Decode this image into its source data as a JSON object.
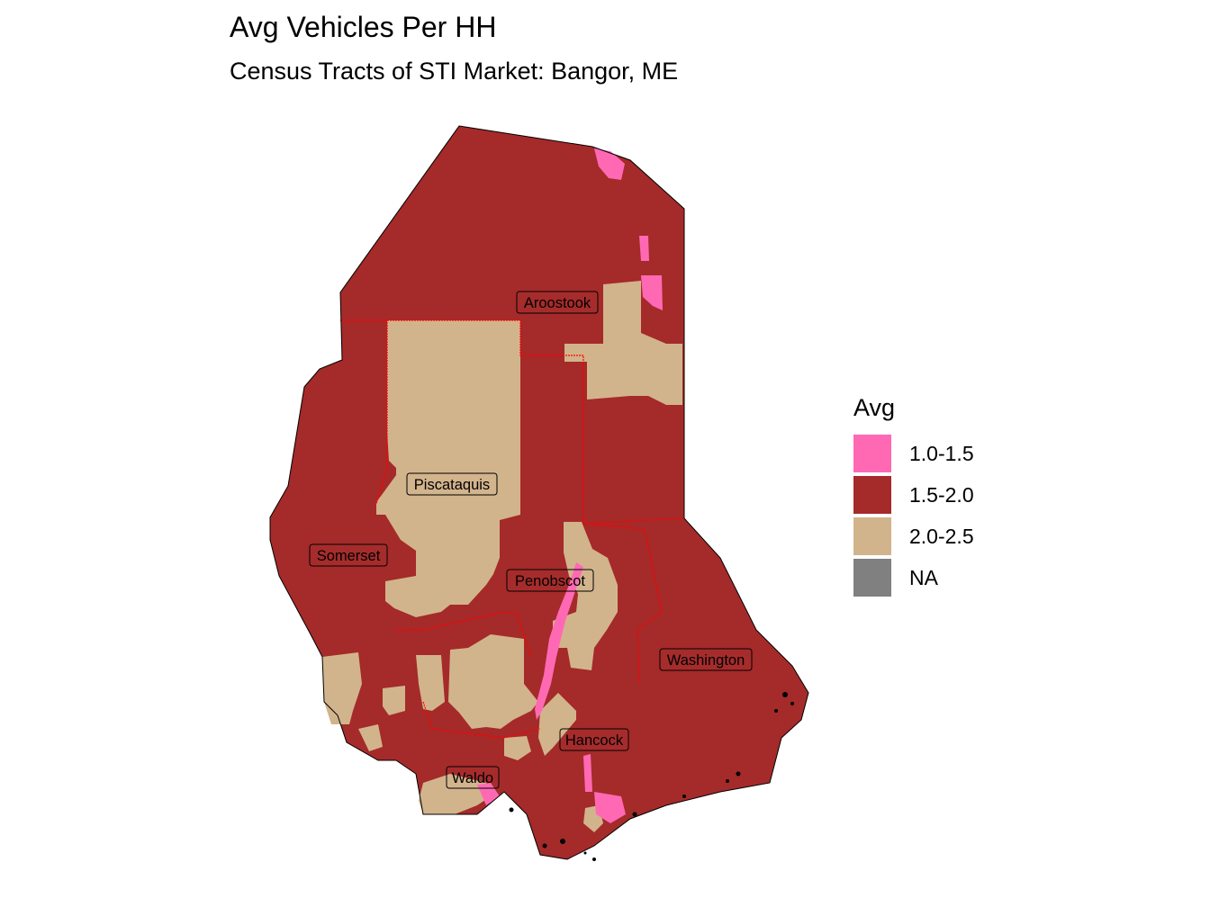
{
  "title": "Avg Vehicles Per HH",
  "subtitle": "Census Tracts of STI Market: Bangor, ME",
  "legend": {
    "title": "Avg",
    "items": [
      {
        "label": "1.0-1.5",
        "color": "#FF69B4"
      },
      {
        "label": "1.5-2.0",
        "color": "#A52A2A"
      },
      {
        "label": "2.0-2.5",
        "color": "#D2B48C"
      },
      {
        "label": "NA",
        "color": "#808080"
      }
    ]
  },
  "colors": {
    "county_border": "#FF0000",
    "outline": "#000000"
  },
  "counties": [
    {
      "id": "aroostook",
      "label": "Aroostook"
    },
    {
      "id": "piscataquis",
      "label": "Piscataquis"
    },
    {
      "id": "somerset",
      "label": "Somerset"
    },
    {
      "id": "penobscot",
      "label": "Penobscot"
    },
    {
      "id": "washington",
      "label": "Washington"
    },
    {
      "id": "hancock",
      "label": "Hancock"
    },
    {
      "id": "waldo",
      "label": "Waldo"
    }
  ]
}
